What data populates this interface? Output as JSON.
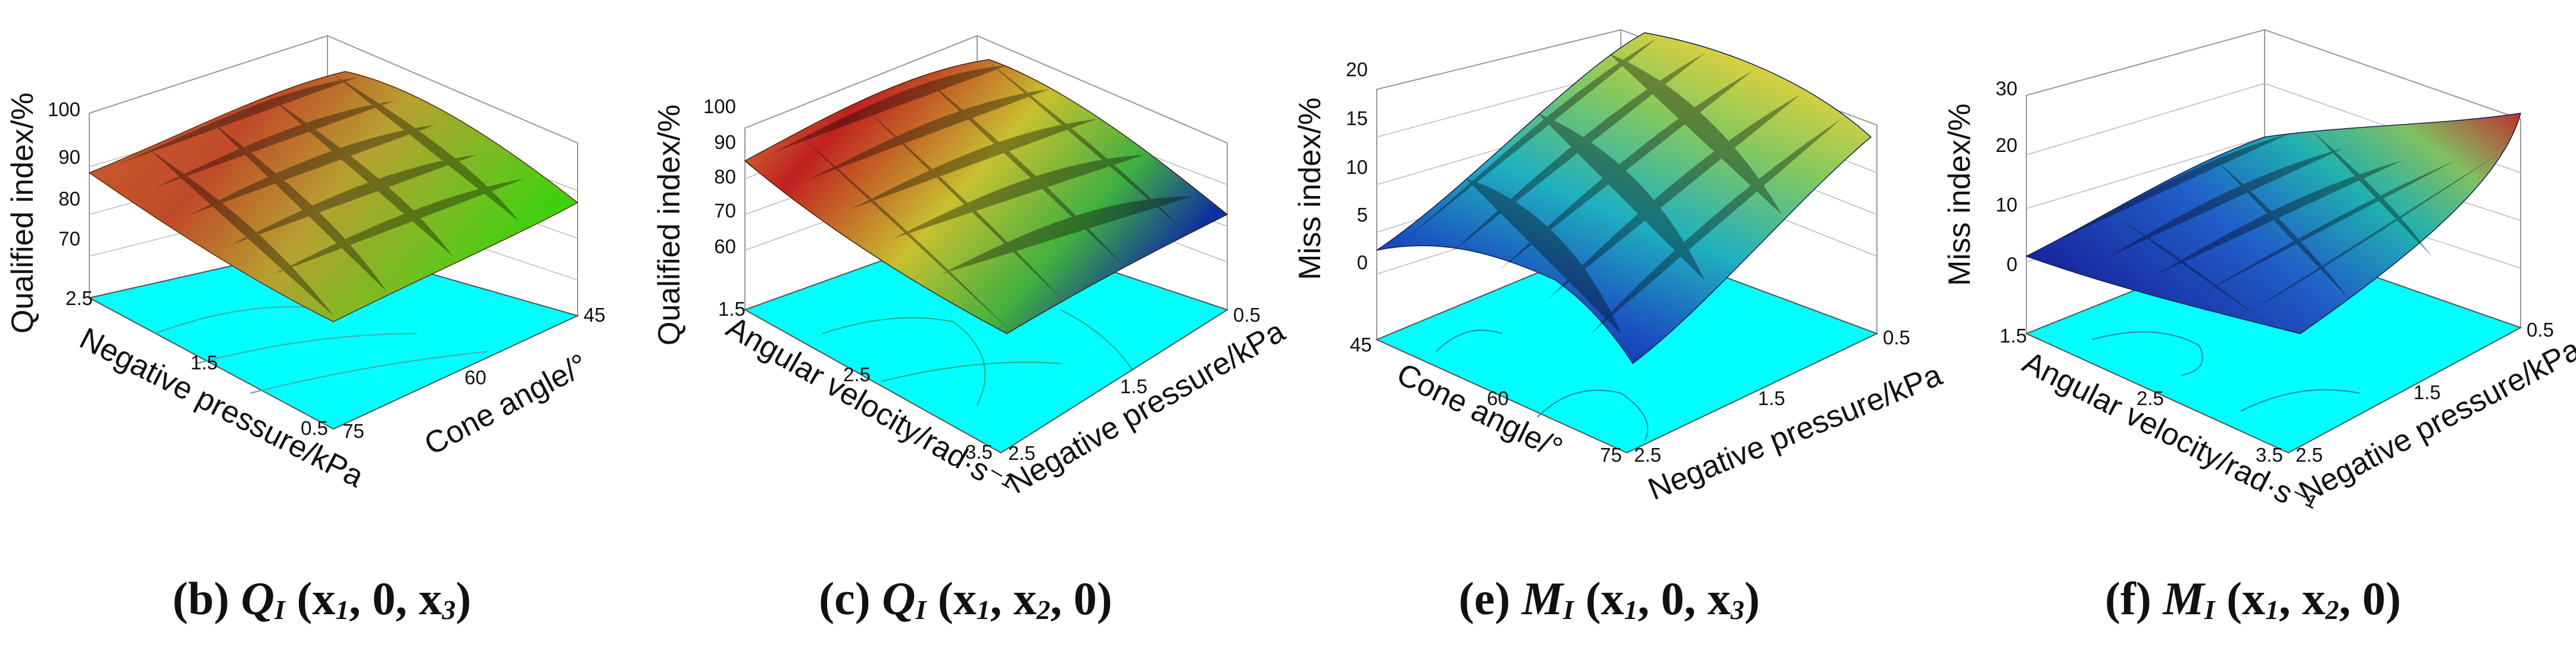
{
  "figure": {
    "panels": [
      {
        "id": "b",
        "caption": {
          "letter": "(b)",
          "var": "Q",
          "sub": "I",
          "args_a": " (x",
          "sub1": "1",
          "args_b": ", 0, x",
          "sub2": "3",
          "args_c": ")"
        },
        "zlabel": "Qualified index/%",
        "left_axis_label": "Negative pressure/kPa",
        "right_axis_label": "Cone angle/°",
        "z_ticks": [
          "70",
          "80",
          "90",
          "100"
        ],
        "left_ticks": [
          "2.5",
          "1.5",
          "0.5"
        ],
        "right_ticks": [
          "75",
          "60",
          "45"
        ]
      },
      {
        "id": "c",
        "caption": {
          "letter": "(c)",
          "var": "Q",
          "sub": "I",
          "args_a": " (x",
          "sub1": "1",
          "args_b": ", x",
          "sub2": "2",
          "args_c": ", 0)"
        },
        "zlabel": "Qualified index/%",
        "left_axis_label": "Angular velocity/rad·s⁻¹",
        "right_axis_label": "Negative pressure/kPa",
        "z_ticks": [
          "60",
          "70",
          "80",
          "90",
          "100"
        ],
        "left_ticks": [
          "1.5",
          "2.5",
          "3.5"
        ],
        "right_ticks": [
          "2.5",
          "1.5",
          "0.5"
        ]
      },
      {
        "id": "e",
        "caption": {
          "letter": "(e)",
          "var": "M",
          "sub": "I",
          "args_a": " (x",
          "sub1": "1",
          "args_b": ", 0, x",
          "sub2": "3",
          "args_c": ")"
        },
        "zlabel": "Miss index/%",
        "left_axis_label": "Cone angle/°",
        "right_axis_label": "Negative pressure/kPa",
        "z_ticks": [
          "0",
          "5",
          "10",
          "15",
          "20"
        ],
        "left_ticks": [
          "45",
          "60",
          "75"
        ],
        "right_ticks": [
          "2.5",
          "1.5",
          "0.5"
        ]
      },
      {
        "id": "f",
        "caption": {
          "letter": "(f)",
          "var": "M",
          "sub": "I",
          "args_a": " (x",
          "sub1": "1",
          "args_b": ", x",
          "sub2": "2",
          "args_c": ", 0)"
        },
        "zlabel": "Miss index/%",
        "left_axis_label": "Angular velocity/rad·s⁻¹",
        "right_axis_label": "Negative pressure/kPa",
        "z_ticks": [
          "0",
          "10",
          "20",
          "30"
        ],
        "left_ticks": [
          "1.5",
          "2.5",
          "3.5"
        ],
        "right_ticks": [
          "2.5",
          "1.5",
          "0.5"
        ]
      }
    ]
  },
  "chart_data": [
    {
      "type": "surface",
      "title": "(b) QI (x1, 0, x3)",
      "xlabel": "Negative pressure/kPa",
      "ylabel": "Cone angle/°",
      "zlabel": "Qualified index/%",
      "x_range": [
        0.5,
        2.5
      ],
      "y_range": [
        45,
        75
      ],
      "z_range": [
        65,
        100
      ],
      "x_grid": [
        0.5,
        1.5,
        2.5
      ],
      "y_grid": [
        45,
        60,
        75
      ],
      "z_grid": [
        [
          80,
          90,
          85
        ],
        [
          85,
          93,
          88
        ],
        [
          83,
          91,
          86
        ]
      ],
      "colors": {
        "low": "#40c020",
        "mid": "#c8a030",
        "high": "#b02828"
      }
    },
    {
      "type": "surface",
      "title": "(c) QI (x1, x2, 0)",
      "xlabel": "Angular velocity/rad·s⁻¹",
      "ylabel": "Negative pressure/kPa",
      "zlabel": "Qualified index/%",
      "x_range": [
        1.5,
        3.5
      ],
      "y_range": [
        0.5,
        2.5
      ],
      "z_range": [
        55,
        100
      ],
      "x_grid": [
        1.5,
        2.5,
        3.5
      ],
      "y_grid": [
        2.5,
        1.5,
        0.5
      ],
      "z_grid": [
        [
          89,
          95,
          82
        ],
        [
          85,
          91,
          78
        ],
        [
          80,
          84,
          65
        ]
      ],
      "colors": {
        "low": "#1030a0",
        "mid": "#c8c030",
        "high": "#b81818"
      }
    },
    {
      "type": "surface",
      "title": "(e) MI (x1, 0, x3)",
      "xlabel": "Cone angle/°",
      "ylabel": "Negative pressure/kPa",
      "zlabel": "Miss index/%",
      "x_range": [
        45,
        75
      ],
      "y_range": [
        0.5,
        2.5
      ],
      "z_range": [
        -5,
        20
      ],
      "x_grid": [
        45,
        60,
        75
      ],
      "y_grid": [
        2.5,
        1.5,
        0.5
      ],
      "z_grid": [
        [
          2,
          3,
          17
        ],
        [
          1,
          1,
          12
        ],
        [
          -3,
          -1,
          9
        ]
      ],
      "colors": {
        "low": "#0a1090",
        "mid": "#20b0c0",
        "high": "#d8d040"
      }
    },
    {
      "type": "surface",
      "title": "(f) MI (x1, x2, 0)",
      "xlabel": "Angular velocity/rad·s⁻¹",
      "ylabel": "Negative pressure/kPa",
      "zlabel": "Miss index/%",
      "x_range": [
        1.5,
        3.5
      ],
      "y_range": [
        0.5,
        2.5
      ],
      "z_range": [
        -3,
        30
      ],
      "x_grid": [
        1.5,
        2.5,
        3.5
      ],
      "y_grid": [
        2.5,
        1.5,
        0.5
      ],
      "z_grid": [
        [
          1,
          8,
          16
        ],
        [
          2,
          6,
          14
        ],
        [
          5,
          12,
          26
        ]
      ],
      "colors": {
        "low": "#1828a0",
        "mid": "#20b0b0",
        "high": "#c03030"
      }
    }
  ]
}
